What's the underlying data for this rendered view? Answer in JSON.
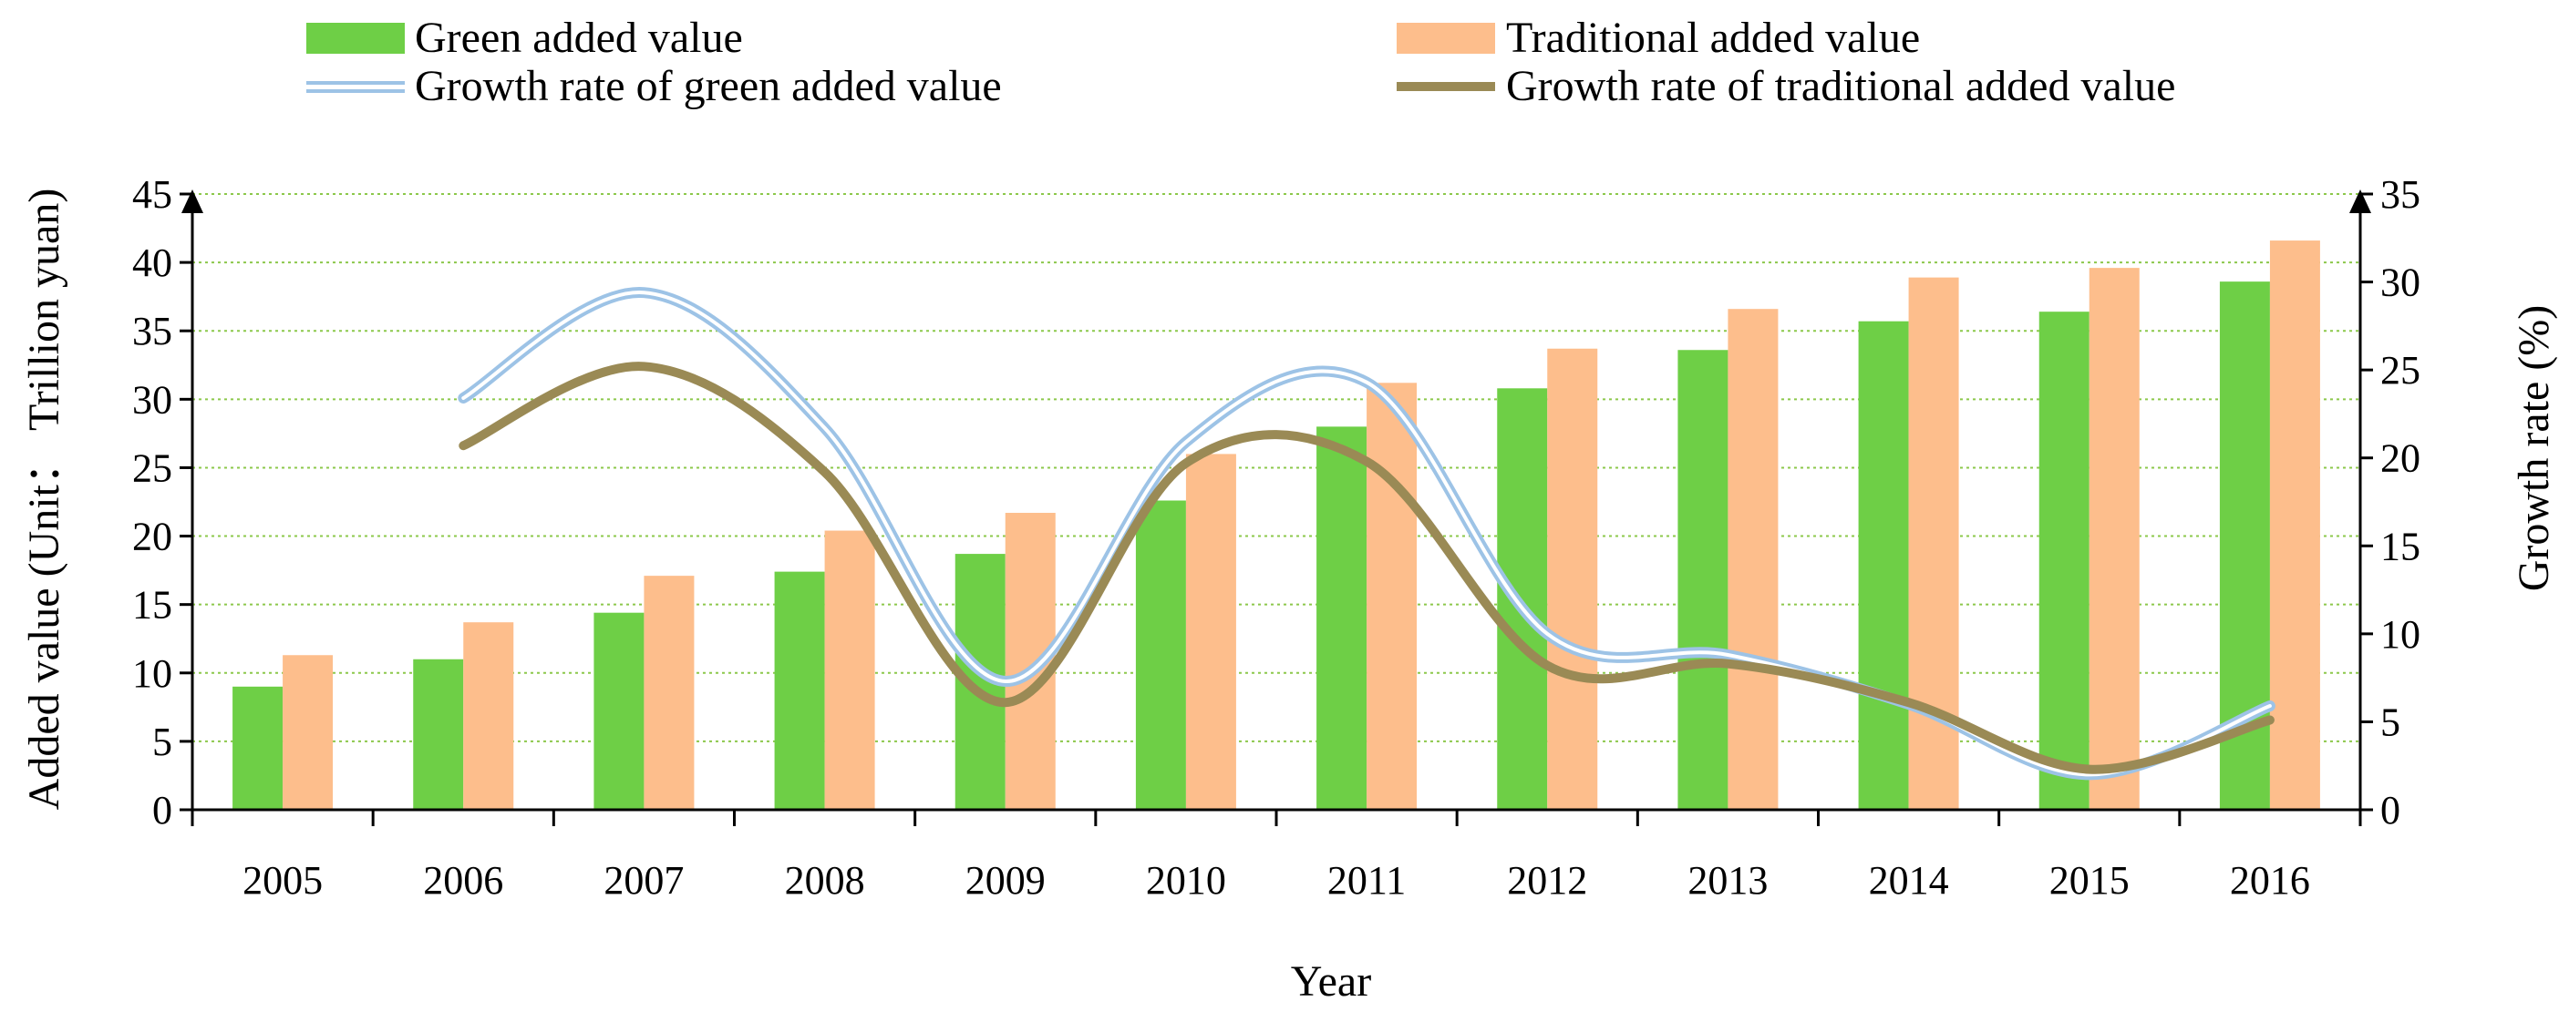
{
  "chart_data": {
    "type": "bar+line",
    "title": "",
    "categories": [
      "2005",
      "2006",
      "2007",
      "2008",
      "2009",
      "2010",
      "2011",
      "2012",
      "2013",
      "2014",
      "2015",
      "2016"
    ],
    "series": [
      {
        "name": "Green added value",
        "kind": "bar",
        "axis": "left",
        "color": "#6ECF46",
        "values": [
          9.0,
          11.0,
          14.4,
          17.4,
          18.7,
          22.6,
          28.0,
          30.8,
          33.6,
          35.7,
          36.4,
          38.6
        ]
      },
      {
        "name": "Traditional added value",
        "kind": "bar",
        "axis": "left",
        "color": "#FDBE8C",
        "values": [
          11.3,
          13.7,
          17.1,
          20.4,
          21.7,
          26.0,
          31.2,
          33.7,
          36.6,
          38.9,
          39.6,
          41.6
        ]
      },
      {
        "name": "Growth rate of green added value",
        "kind": "line",
        "axis": "right",
        "color": "#9DC3E6",
        "style": "double",
        "values": [
          null,
          23.4,
          29.4,
          21.7,
          7.3,
          20.9,
          24.3,
          10.0,
          8.8,
          6.0,
          2.0,
          5.9
        ]
      },
      {
        "name": "Growth rate of traditional added value",
        "kind": "line",
        "axis": "right",
        "color": "#9A8A55",
        "style": "solid",
        "values": [
          null,
          20.7,
          25.2,
          19.2,
          6.1,
          19.7,
          19.8,
          8.2,
          8.3,
          6.1,
          2.3,
          5.1
        ]
      }
    ],
    "y_left": {
      "label": "Added value (Unit：  Trillion yuan)",
      "min": 0,
      "max": 45,
      "step": 5
    },
    "y_right": {
      "label": "Growth rate (%)",
      "min": 0,
      "max": 35,
      "step": 5
    },
    "xlabel": "Year",
    "grid": "horizontal dotted",
    "legend_position": "top"
  }
}
